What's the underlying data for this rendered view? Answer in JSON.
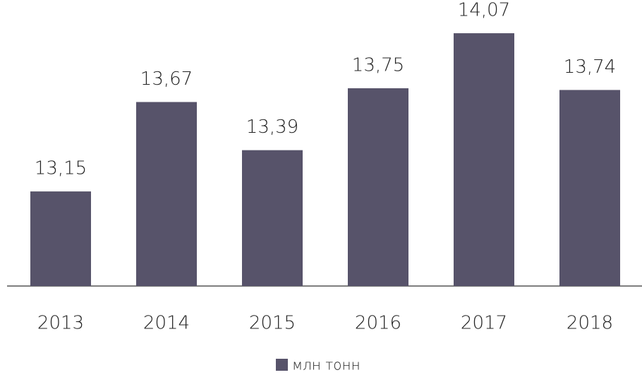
{
  "chart_data": {
    "type": "bar",
    "categories": [
      "2013",
      "2014",
      "2015",
      "2016",
      "2017",
      "2018"
    ],
    "series": [
      {
        "name": "млн тонн",
        "color": "#57536a",
        "values": [
          13.15,
          13.67,
          13.39,
          13.75,
          14.07,
          13.74
        ],
        "value_labels": [
          "13,15",
          "13,67",
          "13,39",
          "13,75",
          "14,07",
          "13,74"
        ]
      }
    ],
    "ylim": [
      12.6,
      14.2
    ],
    "legend": "bottom"
  }
}
